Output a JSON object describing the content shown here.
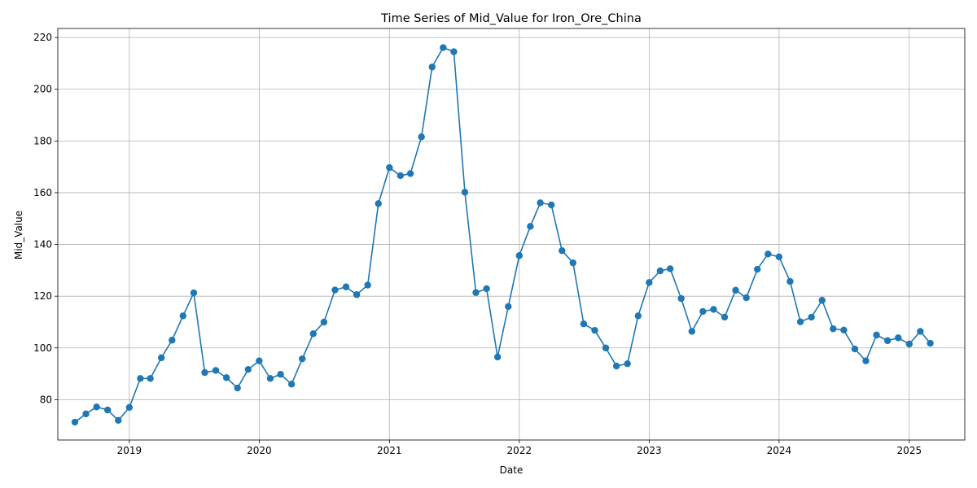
{
  "chart_data": {
    "type": "line",
    "title": "Time Series of Mid_Value for Iron_Ore_China",
    "xlabel": "Date",
    "ylabel": "Mid_Value",
    "x_ticks": [
      "2019",
      "2020",
      "2021",
      "2022",
      "2023",
      "2024",
      "2025"
    ],
    "y_ticks": [
      "80",
      "100",
      "120",
      "140",
      "160",
      "180",
      "200",
      "220"
    ],
    "xlim": [
      "2018-06-14",
      "2025-06-06"
    ],
    "ylim": [
      64.4,
      223.5
    ],
    "grid": true,
    "marker": "circle",
    "color": "#1f77b4",
    "series": [
      {
        "x": [
          "2018-08-01",
          "2018-09-01",
          "2018-10-01",
          "2018-11-01",
          "2018-12-01",
          "2019-01-01",
          "2019-02-01",
          "2019-03-01",
          "2019-04-01",
          "2019-05-01",
          "2019-06-01",
          "2019-07-01",
          "2019-08-01",
          "2019-09-01",
          "2019-10-01",
          "2019-11-01",
          "2019-12-01",
          "2020-01-01",
          "2020-02-01",
          "2020-03-01",
          "2020-04-01",
          "2020-05-01",
          "2020-06-01",
          "2020-07-01",
          "2020-08-01",
          "2020-09-01",
          "2020-10-01",
          "2020-11-01",
          "2020-12-01",
          "2021-01-01",
          "2021-02-01",
          "2021-03-01",
          "2021-04-01",
          "2021-05-01",
          "2021-06-01",
          "2021-07-01",
          "2021-08-01",
          "2021-09-01",
          "2021-10-01",
          "2021-11-01",
          "2021-12-01",
          "2022-01-01",
          "2022-02-01",
          "2022-03-01",
          "2022-04-01",
          "2022-05-01",
          "2022-06-01",
          "2022-07-01",
          "2022-08-01",
          "2022-09-01",
          "2022-10-01",
          "2022-11-01",
          "2022-12-01",
          "2023-01-01",
          "2023-02-01",
          "2023-03-01",
          "2023-04-01",
          "2023-05-01",
          "2023-06-01",
          "2023-07-01",
          "2023-08-01",
          "2023-09-01",
          "2023-10-01",
          "2023-11-01",
          "2023-12-01",
          "2024-01-01",
          "2024-02-01",
          "2024-03-01",
          "2024-04-01",
          "2024-05-01",
          "2024-06-01",
          "2024-07-01",
          "2024-08-01",
          "2024-09-01",
          "2024-10-01",
          "2024-11-01",
          "2024-12-01",
          "2025-01-01",
          "2025-02-01",
          "2025-03-01"
        ],
        "values": [
          71.3,
          74.5,
          77.2,
          76.0,
          72.0,
          77.0,
          88.2,
          88.2,
          96.2,
          103.0,
          112.4,
          121.3,
          90.5,
          91.3,
          88.5,
          84.5,
          91.7,
          95.0,
          88.2,
          89.8,
          86.0,
          95.8,
          105.5,
          110.0,
          122.4,
          123.6,
          120.6,
          124.3,
          155.8,
          169.7,
          166.6,
          167.4,
          181.6,
          208.6,
          216.1,
          214.5,
          160.2,
          121.4,
          122.9,
          96.5,
          116.0,
          135.7,
          147.0,
          156.1,
          155.3,
          137.6,
          132.9,
          109.3,
          106.8,
          100.0,
          93.0,
          93.9,
          112.4,
          125.3,
          129.8,
          130.6,
          119.1,
          106.4,
          114.1,
          114.9,
          111.9,
          122.3,
          119.4,
          130.4,
          136.3,
          135.2,
          125.7,
          110.1,
          111.9,
          118.4,
          107.4,
          106.9,
          99.6,
          95.0,
          105.0,
          102.8,
          103.9,
          101.5,
          106.4,
          101.8
        ]
      }
    ]
  }
}
